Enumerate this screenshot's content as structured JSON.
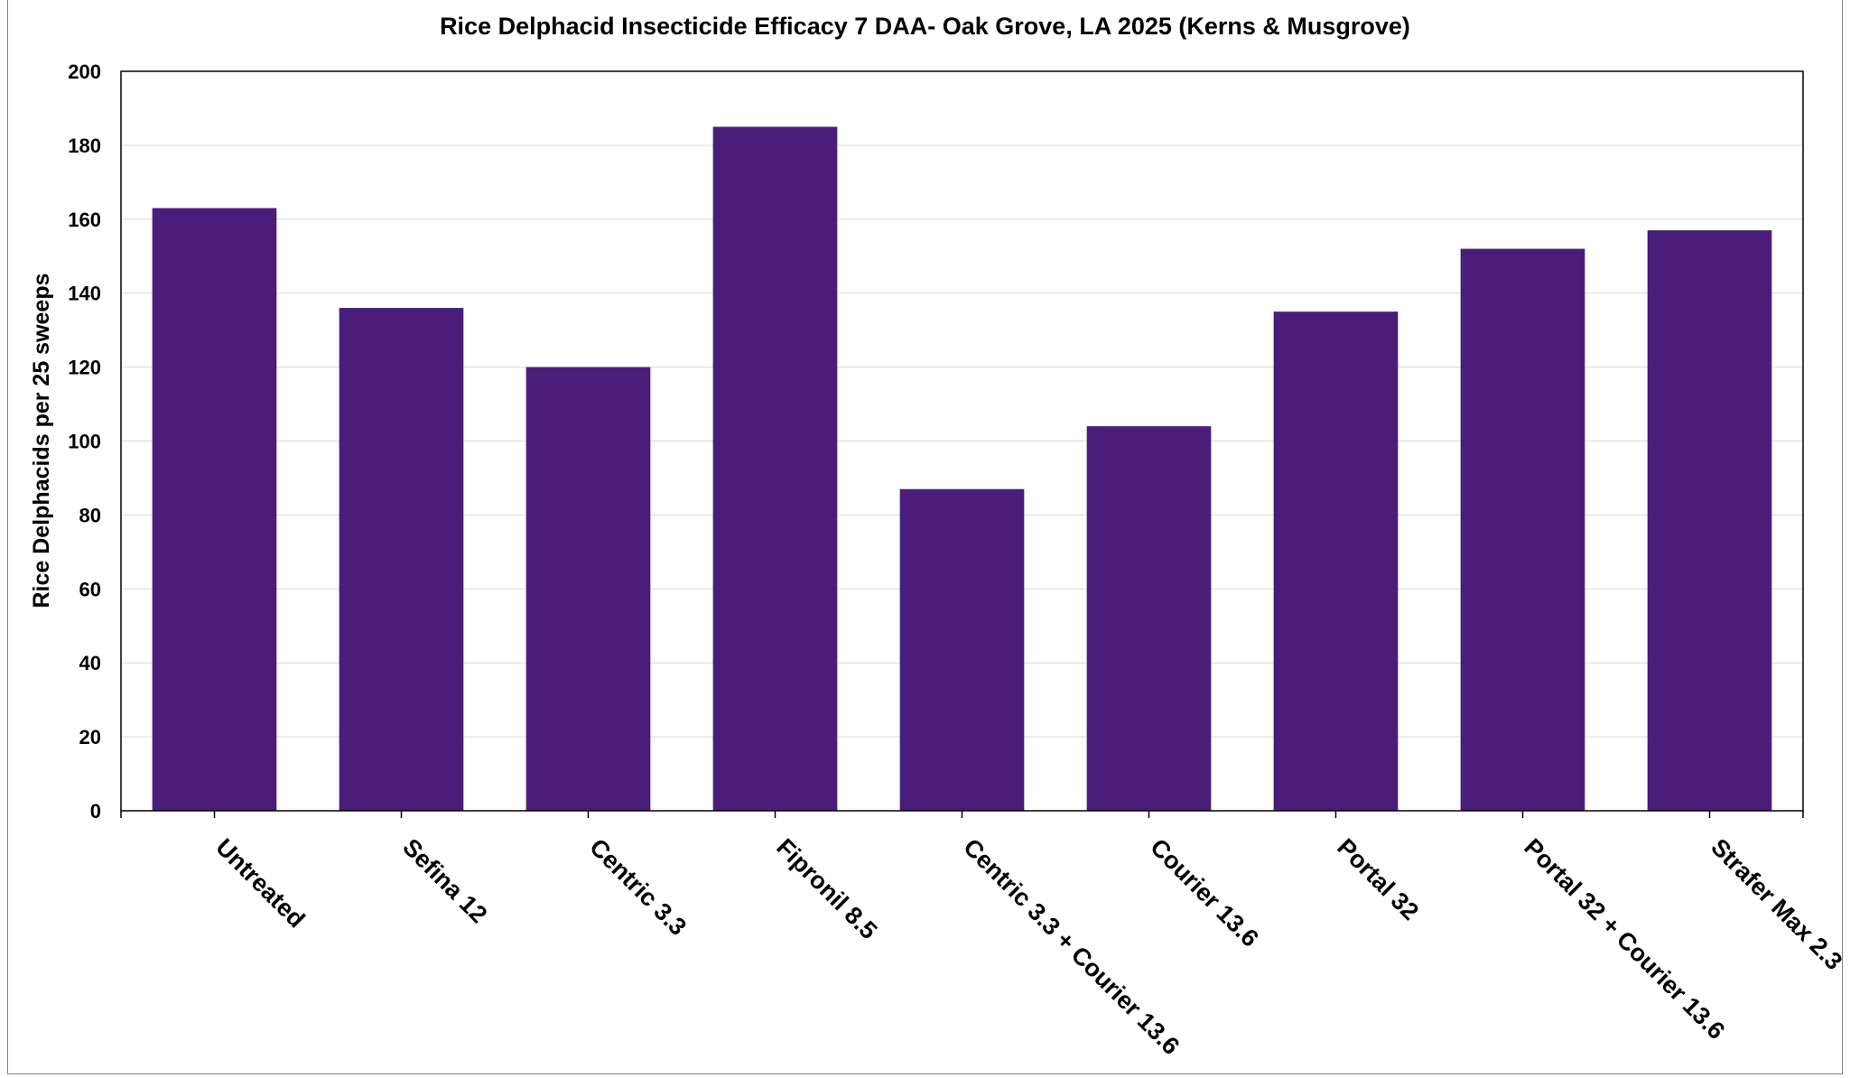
{
  "chart_data": {
    "type": "bar",
    "title": "Rice Delphacid Insecticide Efficacy 7 DAA- Oak Grove, LA 2025 (Kerns & Musgrove)",
    "xlabel": "",
    "ylabel": "Rice Delphacids per 25 sweeps",
    "categories": [
      "Untreated",
      "Sefina 12",
      "Centric 3.3",
      "Fipronil 8.5",
      "Centric 3.3 + Courier 13.6",
      "Courier 13.6",
      "Portal 32",
      "Portal 32 + Courier 13.6",
      "Strafer Max 2.3"
    ],
    "values": [
      163,
      136,
      120,
      185,
      87,
      104,
      135,
      152,
      157
    ],
    "ylim": [
      0,
      200
    ],
    "yticks": [
      "0",
      "20",
      "40",
      "60",
      "80",
      "100",
      "120",
      "140",
      "160",
      "180",
      "200"
    ],
    "grid": true,
    "legend": "none",
    "bar_color": "#4a1d7a"
  }
}
